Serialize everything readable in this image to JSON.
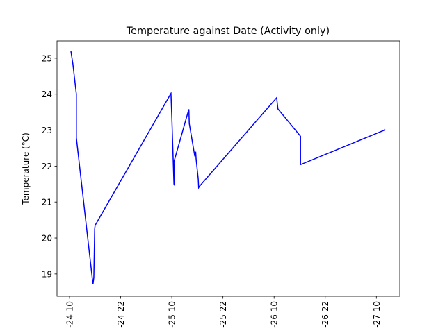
{
  "chart_data": {
    "type": "line",
    "title": "Temperature against Date (Activity only)",
    "y_label": "Temperature (°C)",
    "x": [
      10.33,
      10.8,
      11.6,
      11.6,
      15.5,
      15.7,
      15.9,
      16.0,
      33.8,
      34.0,
      34.5,
      34.6,
      34.5,
      38.0,
      38.1,
      39.4,
      39.6,
      39.7,
      40.2,
      40.3,
      40.5,
      58.6,
      58.9,
      64.2,
      64.2,
      83.9,
      84.0
    ],
    "series": [
      {
        "name": "Temperature",
        "color": "#0000ff",
        "values": [
          25.19,
          24.83,
          24.0,
          22.79,
          18.71,
          18.9,
          20.25,
          20.35,
          24.02,
          23.37,
          21.5,
          21.48,
          22.12,
          23.58,
          23.18,
          22.27,
          22.4,
          22.2,
          21.64,
          21.4,
          21.44,
          23.9,
          23.59,
          22.83,
          22.04,
          23.0,
          23.03
        ]
      }
    ],
    "xlim": [
      7.06,
      87.5
    ],
    "ylim": [
      18.38,
      25.48
    ],
    "xticks": [
      {
        "value": 10,
        "label": "-24 10"
      },
      {
        "value": 22,
        "label": "-24 22"
      },
      {
        "value": 34,
        "label": "-25 10"
      },
      {
        "value": 46,
        "label": "-25 22"
      },
      {
        "value": 58,
        "label": "-26 10"
      },
      {
        "value": 70,
        "label": "-26 22"
      },
      {
        "value": 82,
        "label": "-27 10"
      }
    ],
    "yticks": [
      19,
      20,
      21,
      22,
      23,
      24,
      25
    ]
  }
}
